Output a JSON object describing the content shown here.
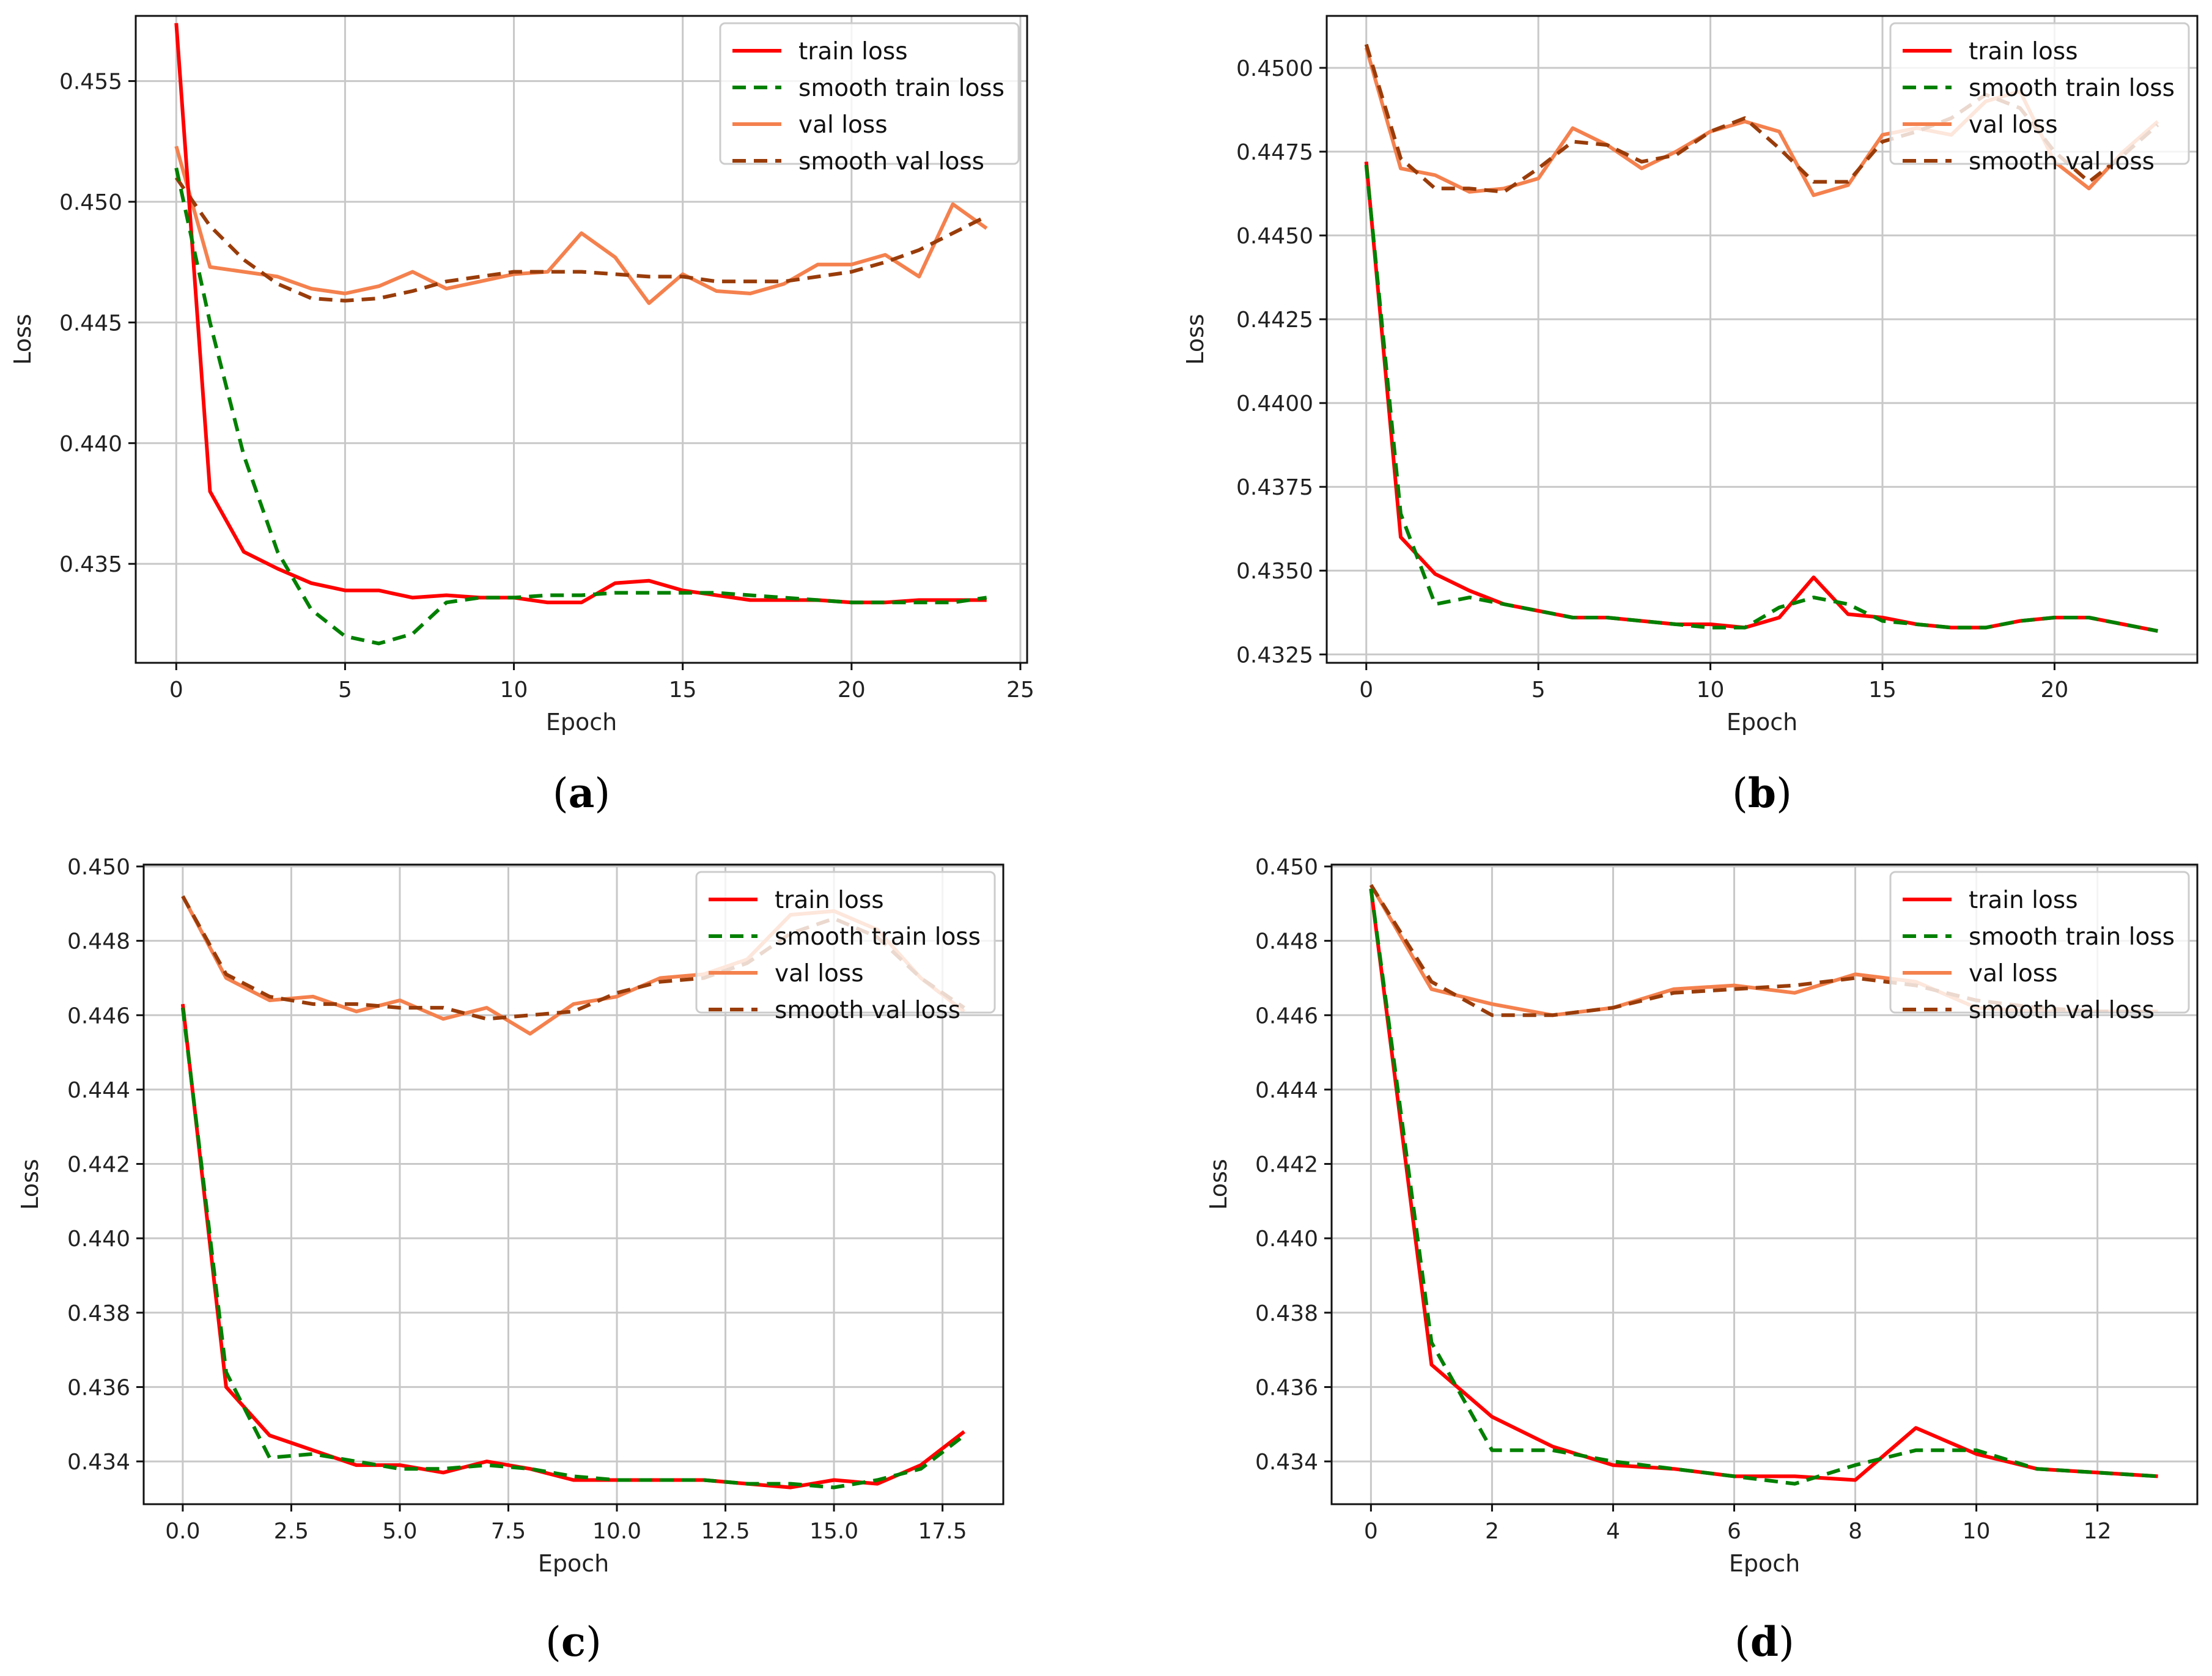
{
  "colors": {
    "train": "#ff0000",
    "smooth_train": "#008000",
    "val": "#f4814e",
    "smooth_val": "#993c0a"
  },
  "legend_labels": [
    "train loss",
    "smooth train loss",
    "val loss",
    "smooth val loss"
  ],
  "chart_data": [
    {
      "panel": "a",
      "type": "line",
      "caption_letter": "a",
      "xlabel": "Epoch",
      "ylabel": "Loss",
      "xlim": [
        -1.2,
        25.2
      ],
      "ylim": [
        0.4309,
        0.4577
      ],
      "xticks": [
        0,
        5,
        10,
        15,
        20,
        25
      ],
      "xtick_labels": [
        "0",
        "5",
        "10",
        "15",
        "20",
        "25"
      ],
      "yticks": [
        0.435,
        0.44,
        0.445,
        0.45,
        0.455
      ],
      "ytick_labels": [
        "0.435",
        "0.440",
        "0.445",
        "0.450",
        "0.455"
      ],
      "legend_position": "top-right",
      "grid": true,
      "series": [
        {
          "name": "train loss",
          "x": [
            0,
            1,
            2,
            3,
            4,
            5,
            6,
            7,
            8,
            9,
            10,
            11,
            12,
            13,
            14,
            15,
            16,
            17,
            18,
            19,
            20,
            21,
            22,
            23,
            24
          ],
          "values": [
            0.4574,
            0.438,
            0.4355,
            0.4348,
            0.4342,
            0.4339,
            0.4339,
            0.4336,
            0.4337,
            0.4336,
            0.4336,
            0.4334,
            0.4334,
            0.4342,
            0.4343,
            0.4339,
            0.4337,
            0.4335,
            0.4335,
            0.4335,
            0.4334,
            0.4334,
            0.4335,
            0.4335,
            0.4335
          ]
        },
        {
          "name": "smooth train loss",
          "x": [
            0,
            1,
            2,
            3,
            4,
            5,
            6,
            7,
            8,
            9,
            10,
            11,
            12,
            13,
            14,
            15,
            16,
            17,
            18,
            19,
            20,
            21,
            22,
            23,
            24
          ],
          "values": [
            0.4514,
            0.445,
            0.4395,
            0.4355,
            0.4331,
            0.432,
            0.4317,
            0.4321,
            0.4334,
            0.4336,
            0.4336,
            0.4337,
            0.4337,
            0.4338,
            0.4338,
            0.4338,
            0.4338,
            0.4337,
            0.4336,
            0.4335,
            0.4334,
            0.4334,
            0.4334,
            0.4334,
            0.4336
          ]
        },
        {
          "name": "val loss",
          "x": [
            0,
            1,
            2,
            3,
            4,
            5,
            6,
            7,
            8,
            9,
            10,
            11,
            12,
            13,
            14,
            15,
            16,
            17,
            18,
            19,
            20,
            21,
            22,
            23,
            24
          ],
          "values": [
            0.4523,
            0.4473,
            0.4471,
            0.4469,
            0.4464,
            0.4462,
            0.4465,
            0.4471,
            0.4464,
            0.4467,
            0.447,
            0.4471,
            0.4487,
            0.4477,
            0.4458,
            0.447,
            0.4463,
            0.4462,
            0.4466,
            0.4474,
            0.4474,
            0.4478,
            0.4469,
            0.4499,
            0.4489
          ]
        },
        {
          "name": "smooth val loss",
          "x": [
            0,
            1,
            2,
            3,
            4,
            5,
            6,
            7,
            8,
            9,
            10,
            11,
            12,
            13,
            14,
            15,
            16,
            17,
            18,
            19,
            20,
            21,
            22,
            23,
            24
          ],
          "values": [
            0.451,
            0.449,
            0.4476,
            0.4466,
            0.446,
            0.4459,
            0.446,
            0.4463,
            0.4467,
            0.4469,
            0.4471,
            0.4471,
            0.4471,
            0.447,
            0.4469,
            0.4469,
            0.4467,
            0.4467,
            0.4467,
            0.4469,
            0.4471,
            0.4475,
            0.448,
            0.4487,
            0.4494
          ]
        }
      ]
    },
    {
      "panel": "b",
      "type": "line",
      "caption_letter": "b",
      "xlabel": "Epoch",
      "ylabel": "Loss",
      "xlim": [
        -1.15,
        24.15
      ],
      "ylim": [
        0.43225,
        0.45155
      ],
      "xticks": [
        0,
        5,
        10,
        15,
        20
      ],
      "xtick_labels": [
        "0",
        "5",
        "10",
        "15",
        "20"
      ],
      "yticks": [
        0.4325,
        0.435,
        0.4375,
        0.44,
        0.4425,
        0.445,
        0.4475,
        0.45
      ],
      "ytick_labels": [
        "0.4325",
        "0.4350",
        "0.4375",
        "0.4400",
        "0.4425",
        "0.4450",
        "0.4475",
        "0.4500"
      ],
      "legend_position": "top-right",
      "grid": true,
      "series": [
        {
          "name": "train loss",
          "x": [
            0,
            1,
            2,
            3,
            4,
            5,
            6,
            7,
            8,
            9,
            10,
            11,
            12,
            13,
            14,
            15,
            16,
            17,
            18,
            19,
            20,
            21,
            22,
            23
          ],
          "values": [
            0.4472,
            0.436,
            0.4349,
            0.4344,
            0.434,
            0.4338,
            0.4336,
            0.4336,
            0.4335,
            0.4334,
            0.4334,
            0.4333,
            0.4336,
            0.4348,
            0.4337,
            0.4336,
            0.4334,
            0.4333,
            0.4333,
            0.4335,
            0.4336,
            0.4336,
            0.4334,
            0.4332
          ]
        },
        {
          "name": "smooth train loss",
          "x": [
            0,
            1,
            2,
            3,
            4,
            5,
            6,
            7,
            8,
            9,
            10,
            11,
            12,
            13,
            14,
            15,
            16,
            17,
            18,
            19,
            20,
            21,
            22,
            23
          ],
          "values": [
            0.4471,
            0.4367,
            0.434,
            0.4342,
            0.434,
            0.4338,
            0.4336,
            0.4336,
            0.4335,
            0.4334,
            0.4333,
            0.4333,
            0.4339,
            0.4342,
            0.434,
            0.4335,
            0.4334,
            0.4333,
            0.4333,
            0.4335,
            0.4336,
            0.4336,
            0.4334,
            0.4332
          ]
        },
        {
          "name": "val loss",
          "x": [
            0,
            1,
            2,
            3,
            4,
            5,
            6,
            7,
            8,
            9,
            10,
            11,
            12,
            13,
            14,
            15,
            16,
            17,
            18,
            19,
            20,
            21,
            22,
            23
          ],
          "values": [
            0.4506,
            0.447,
            0.4468,
            0.4463,
            0.4464,
            0.4467,
            0.4482,
            0.4477,
            0.447,
            0.4475,
            0.4481,
            0.4484,
            0.4481,
            0.4462,
            0.4465,
            0.448,
            0.4482,
            0.448,
            0.449,
            0.4493,
            0.4472,
            0.4464,
            0.4475,
            0.4484
          ]
        },
        {
          "name": "smooth val loss",
          "x": [
            0,
            1,
            2,
            3,
            4,
            5,
            6,
            7,
            8,
            9,
            10,
            11,
            12,
            13,
            14,
            15,
            16,
            17,
            18,
            19,
            20,
            21,
            22,
            23
          ],
          "values": [
            0.4507,
            0.4473,
            0.4464,
            0.4464,
            0.4463,
            0.447,
            0.4478,
            0.4477,
            0.4472,
            0.4474,
            0.4481,
            0.4485,
            0.4476,
            0.4466,
            0.4466,
            0.4478,
            0.4481,
            0.4485,
            0.4492,
            0.4488,
            0.4475,
            0.4466,
            0.4474,
            0.4483
          ]
        }
      ]
    },
    {
      "panel": "c",
      "type": "line",
      "caption_letter": "c",
      "xlabel": "Epoch",
      "ylabel": "Loss",
      "xlim": [
        -0.9,
        18.9
      ],
      "ylim": [
        0.43285,
        0.45005
      ],
      "xticks": [
        0,
        2.5,
        5,
        7.5,
        10,
        12.5,
        15,
        17.5
      ],
      "xtick_labels": [
        "0.0",
        "2.5",
        "5.0",
        "7.5",
        "10.0",
        "12.5",
        "15.0",
        "17.5"
      ],
      "yticks": [
        0.434,
        0.436,
        0.438,
        0.44,
        0.442,
        0.444,
        0.446,
        0.448,
        0.45
      ],
      "ytick_labels": [
        "0.434",
        "0.436",
        "0.438",
        "0.440",
        "0.442",
        "0.444",
        "0.446",
        "0.448",
        "0.450"
      ],
      "legend_position": "top-right",
      "grid": true,
      "series": [
        {
          "name": "train loss",
          "x": [
            0,
            1,
            2,
            3,
            4,
            5,
            6,
            7,
            8,
            9,
            10,
            11,
            12,
            13,
            14,
            15,
            16,
            17,
            18
          ],
          "values": [
            0.4463,
            0.436,
            0.4347,
            0.4343,
            0.4339,
            0.4339,
            0.4337,
            0.434,
            0.4338,
            0.4335,
            0.4335,
            0.4335,
            0.4335,
            0.4334,
            0.4333,
            0.4335,
            0.4334,
            0.4339,
            0.4348
          ]
        },
        {
          "name": "smooth train loss",
          "x": [
            0,
            1,
            2,
            3,
            4,
            5,
            6,
            7,
            8,
            9,
            10,
            11,
            12,
            13,
            14,
            15,
            16,
            17,
            18
          ],
          "values": [
            0.4462,
            0.4364,
            0.4341,
            0.4342,
            0.434,
            0.4338,
            0.4338,
            0.4339,
            0.4338,
            0.4336,
            0.4335,
            0.4335,
            0.4335,
            0.4334,
            0.4334,
            0.4333,
            0.4335,
            0.4338,
            0.4347
          ]
        },
        {
          "name": "val loss",
          "x": [
            0,
            1,
            2,
            3,
            4,
            5,
            6,
            7,
            8,
            9,
            10,
            11,
            12,
            13,
            14,
            15,
            16,
            17,
            18
          ],
          "values": [
            0.4492,
            0.447,
            0.4464,
            0.4465,
            0.4461,
            0.4464,
            0.4459,
            0.4462,
            0.4455,
            0.4463,
            0.4465,
            0.447,
            0.4471,
            0.4475,
            0.4487,
            0.4488,
            0.4483,
            0.447,
            0.4461
          ]
        },
        {
          "name": "smooth val loss",
          "x": [
            0,
            1,
            2,
            3,
            4,
            5,
            6,
            7,
            8,
            9,
            10,
            11,
            12,
            13,
            14,
            15,
            16,
            17,
            18
          ],
          "values": [
            0.4492,
            0.4471,
            0.4465,
            0.4463,
            0.4463,
            0.4462,
            0.4462,
            0.4459,
            0.446,
            0.4461,
            0.4466,
            0.4469,
            0.447,
            0.4474,
            0.4482,
            0.4486,
            0.4481,
            0.447,
            0.4462
          ]
        }
      ]
    },
    {
      "panel": "d",
      "type": "line",
      "caption_letter": "d",
      "xlabel": "Epoch",
      "ylabel": "Loss",
      "xlim": [
        -0.65,
        13.65
      ],
      "ylim": [
        0.43285,
        0.45005
      ],
      "xticks": [
        0,
        2,
        4,
        6,
        8,
        10,
        12
      ],
      "xtick_labels": [
        "0",
        "2",
        "4",
        "6",
        "8",
        "10",
        "12"
      ],
      "yticks": [
        0.434,
        0.436,
        0.438,
        0.44,
        0.442,
        0.444,
        0.446,
        0.448,
        0.45
      ],
      "ytick_labels": [
        "0.434",
        "0.436",
        "0.438",
        "0.440",
        "0.442",
        "0.444",
        "0.446",
        "0.448",
        "0.450"
      ],
      "legend_position": "top-right",
      "grid": true,
      "series": [
        {
          "name": "train loss",
          "x": [
            0,
            1,
            2,
            3,
            4,
            5,
            6,
            7,
            8,
            9,
            10,
            11,
            12,
            13
          ],
          "values": [
            0.4494,
            0.4366,
            0.4352,
            0.4344,
            0.4339,
            0.4338,
            0.4336,
            0.4336,
            0.4335,
            0.4349,
            0.4342,
            0.4338,
            0.4337,
            0.4336
          ]
        },
        {
          "name": "smooth train loss",
          "x": [
            0,
            1,
            2,
            3,
            4,
            5,
            6,
            7,
            8,
            9,
            10,
            11,
            12,
            13
          ],
          "values": [
            0.4494,
            0.4372,
            0.4343,
            0.4343,
            0.434,
            0.4338,
            0.4336,
            0.4334,
            0.4339,
            0.4343,
            0.4343,
            0.4338,
            0.4337,
            0.4336
          ]
        },
        {
          "name": "val loss",
          "x": [
            0,
            1,
            2,
            3,
            4,
            5,
            6,
            7,
            8,
            9,
            10,
            11,
            12,
            13
          ],
          "values": [
            0.4495,
            0.4467,
            0.4463,
            0.446,
            0.4462,
            0.4467,
            0.4468,
            0.4466,
            0.4471,
            0.4469,
            0.4462,
            0.4461,
            0.4461,
            0.4461
          ]
        },
        {
          "name": "smooth val loss",
          "x": [
            0,
            1,
            2,
            3,
            4,
            5,
            6,
            7,
            8,
            9,
            10,
            11,
            12,
            13
          ],
          "values": [
            0.4495,
            0.4469,
            0.446,
            0.446,
            0.4462,
            0.4466,
            0.4467,
            0.4468,
            0.447,
            0.4468,
            0.4464,
            0.4462,
            0.4461,
            0.4461
          ]
        }
      ]
    }
  ]
}
